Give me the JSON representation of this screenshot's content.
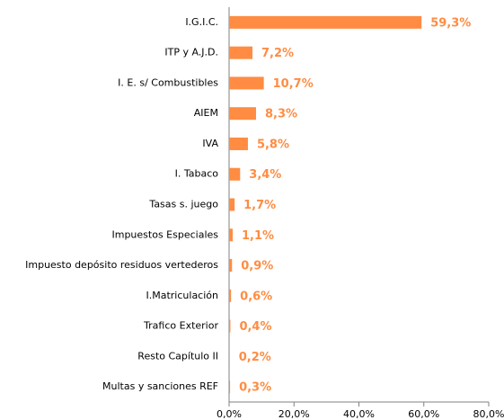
{
  "chart_data": {
    "type": "barh",
    "categories": [
      "I.G.I.C.",
      "ITP y A.J.D.",
      "I. E. s/ Combustibles",
      "AIEM",
      "IVA",
      "I. Tabaco",
      "Tasas s. juego",
      "Impuestos Especiales",
      "Impuesto depósito residuos vertederos",
      "I.Matriculación",
      "Trafico Exterior",
      "Resto Capítulo II",
      "Multas y sanciones REF"
    ],
    "values": [
      59.3,
      7.2,
      10.7,
      8.3,
      5.8,
      3.4,
      1.7,
      1.1,
      0.9,
      0.6,
      0.4,
      0.2,
      0.3
    ],
    "value_labels": [
      "59,3%",
      "7,2%",
      "10,7%",
      "8,3%",
      "5,8%",
      "3,4%",
      "1,7%",
      "1,1%",
      "0,9%",
      "0,6%",
      "0,4%",
      "0,2%",
      "0,3%"
    ],
    "color": "#ff8c42",
    "xlim": [
      0,
      80
    ],
    "xticks": [
      {
        "value": 0,
        "label": "0,0%"
      },
      {
        "value": 20,
        "label": "20,0%"
      },
      {
        "value": 40,
        "label": "40,0%"
      },
      {
        "value": 60,
        "label": "60,0%"
      },
      {
        "value": 80,
        "label": "80,0%"
      }
    ]
  }
}
